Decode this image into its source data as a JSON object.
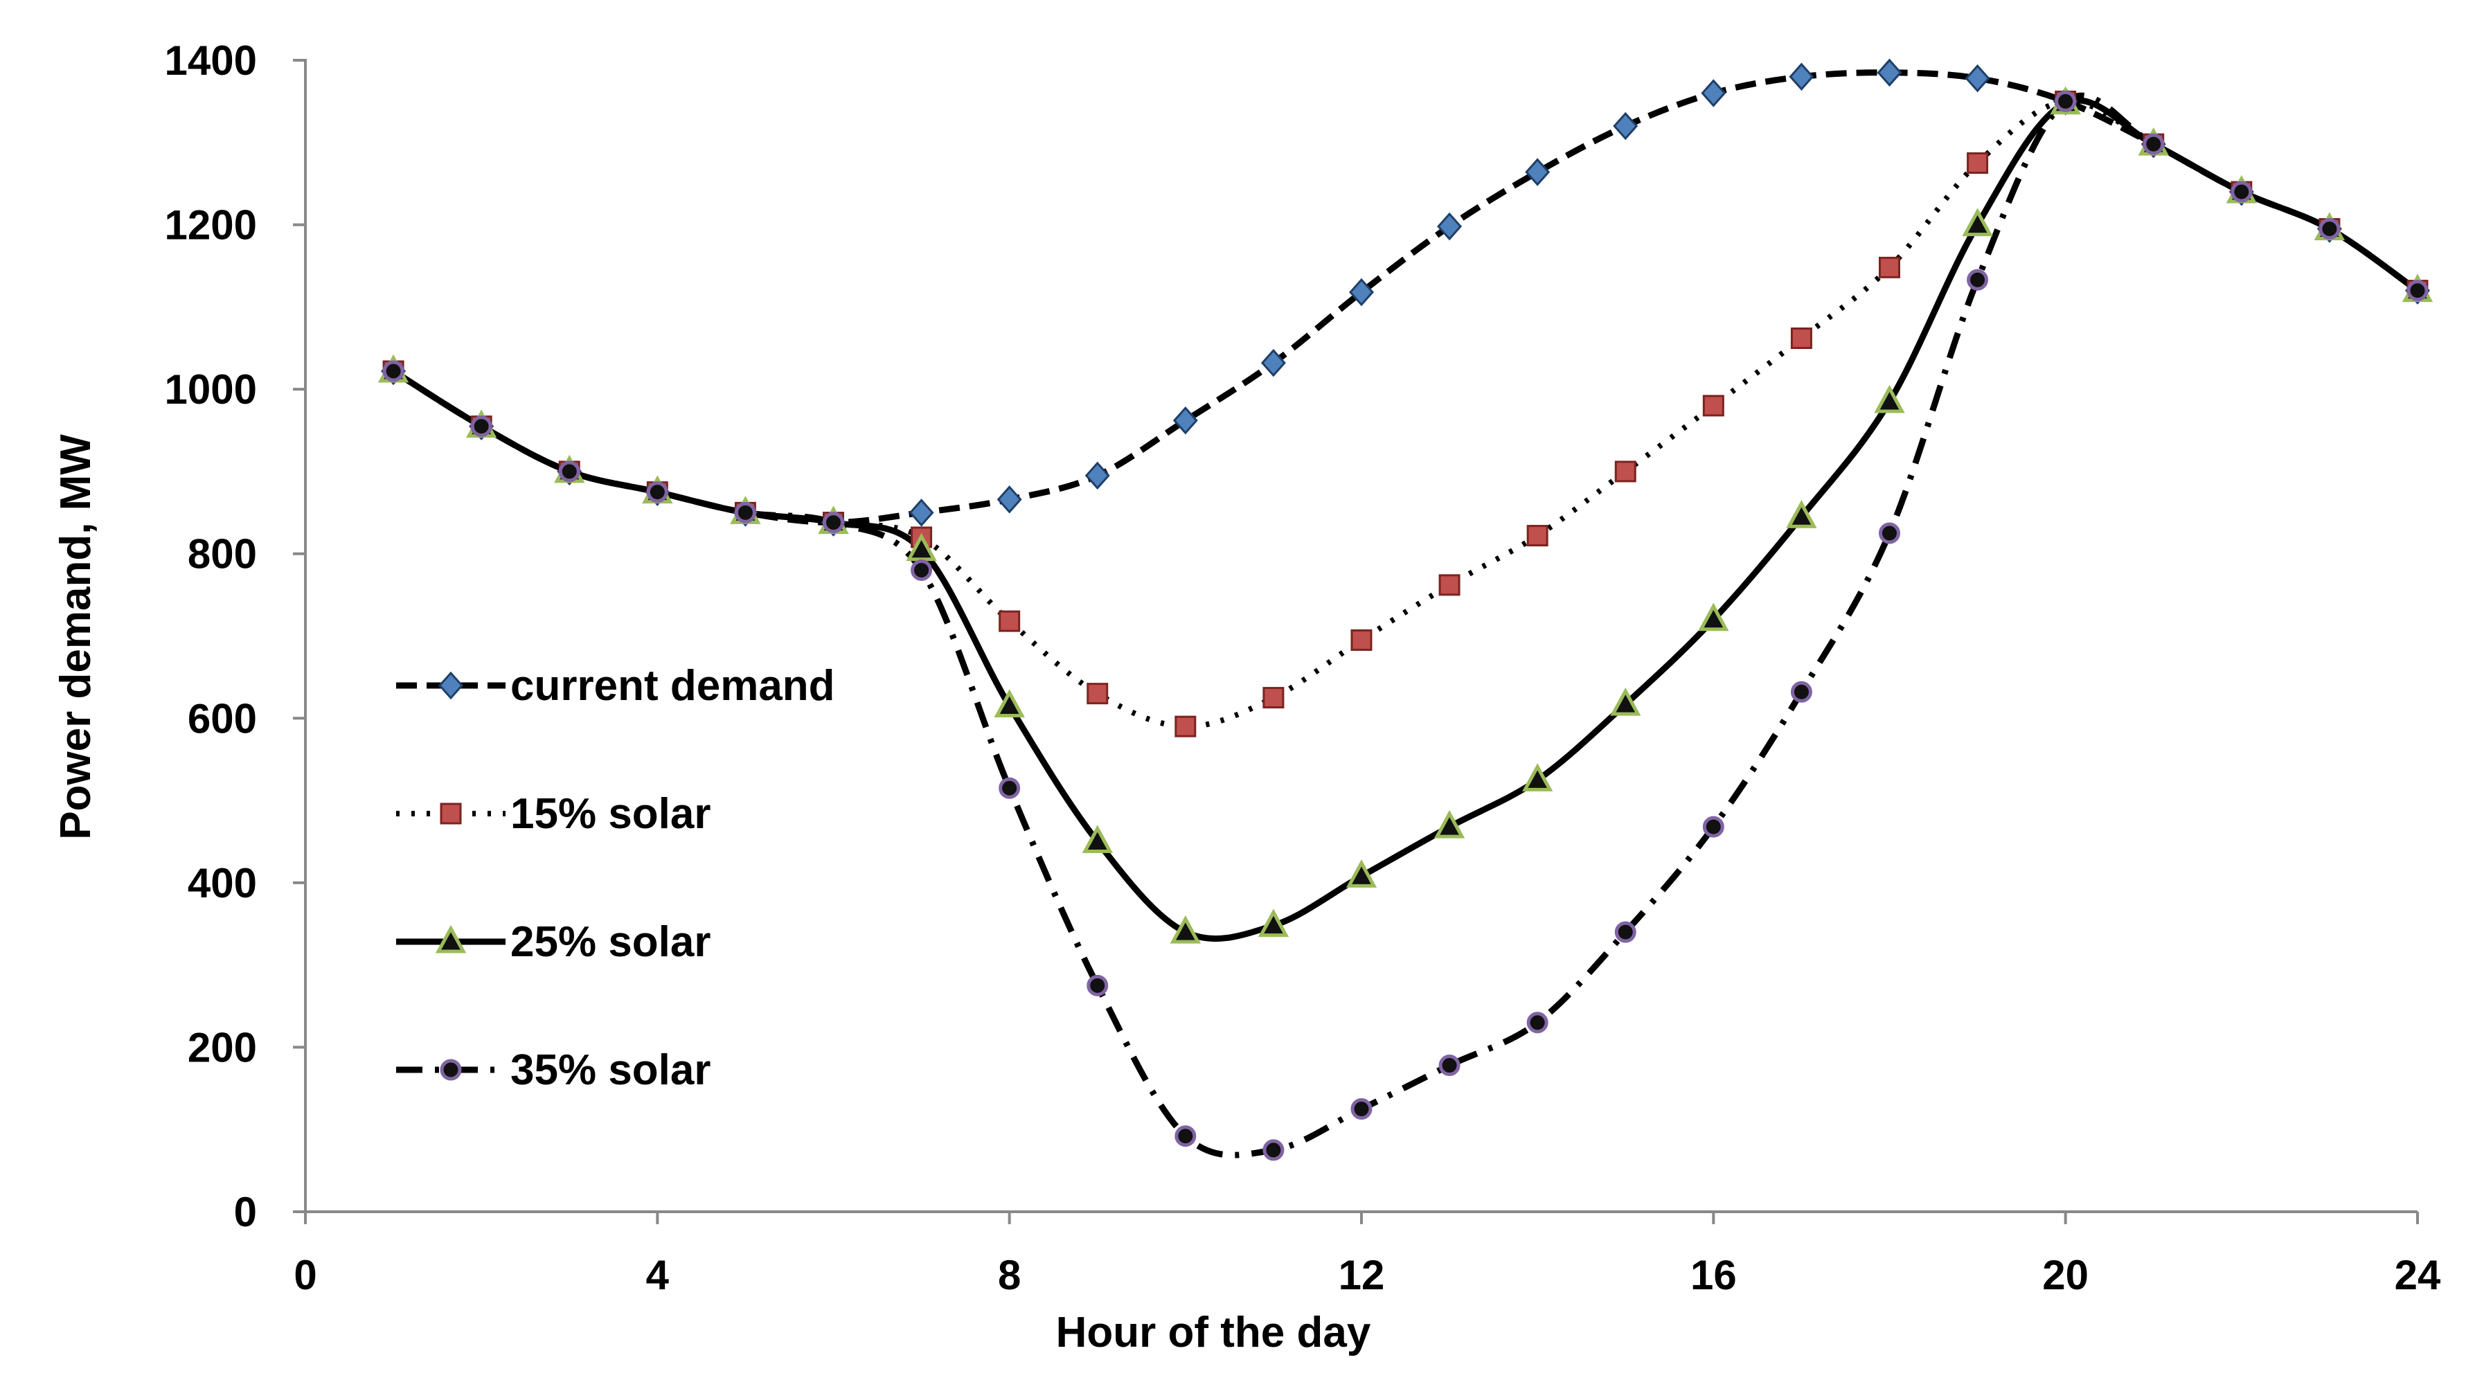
{
  "chart_data": {
    "type": "line",
    "title": "",
    "xlabel": "Hour of the day",
    "ylabel": "Power demand, MW",
    "xlim": [
      0,
      24
    ],
    "ylim": [
      0,
      1400
    ],
    "xticks": [
      0,
      4,
      8,
      12,
      16,
      20,
      24
    ],
    "yticks": [
      0,
      200,
      400,
      600,
      800,
      1000,
      1200,
      1400
    ],
    "grid": false,
    "legend_position": "left-center",
    "x": [
      1,
      2,
      3,
      4,
      5,
      6,
      7,
      8,
      9,
      10,
      11,
      12,
      13,
      14,
      15,
      16,
      17,
      18,
      19,
      20,
      21,
      22,
      23,
      24
    ],
    "series": [
      {
        "name": "current demand",
        "line_style": "dashed",
        "marker": "diamond",
        "marker_color": "#4f81bd",
        "values": [
          1022,
          955,
          900,
          875,
          850,
          838,
          850,
          866,
          895,
          962,
          1032,
          1118,
          1198,
          1264,
          1320,
          1360,
          1380,
          1385,
          1378,
          1350,
          1298,
          1240,
          1195,
          1120
        ]
      },
      {
        "name": "15% solar",
        "line_style": "dotted",
        "marker": "square",
        "marker_color": "#c0504d",
        "values": [
          1022,
          955,
          900,
          875,
          850,
          838,
          820,
          718,
          630,
          590,
          625,
          695,
          762,
          822,
          900,
          980,
          1062,
          1148,
          1275,
          1350,
          1298,
          1240,
          1195,
          1120
        ]
      },
      {
        "name": "25% solar",
        "line_style": "solid",
        "marker": "triangle",
        "marker_color": "#9bbb59",
        "values": [
          1022,
          955,
          900,
          875,
          850,
          838,
          805,
          615,
          450,
          340,
          348,
          408,
          468,
          525,
          617,
          720,
          845,
          985,
          1200,
          1348,
          1298,
          1240,
          1195,
          1120
        ]
      },
      {
        "name": "35% solar",
        "line_style": "dashdot",
        "marker": "circle",
        "marker_color": "#8064a2",
        "values": [
          1022,
          955,
          900,
          875,
          850,
          838,
          780,
          515,
          275,
          92,
          75,
          125,
          178,
          230,
          340,
          468,
          632,
          825,
          1133,
          1350,
          1298,
          1240,
          1195,
          1120
        ]
      }
    ]
  }
}
